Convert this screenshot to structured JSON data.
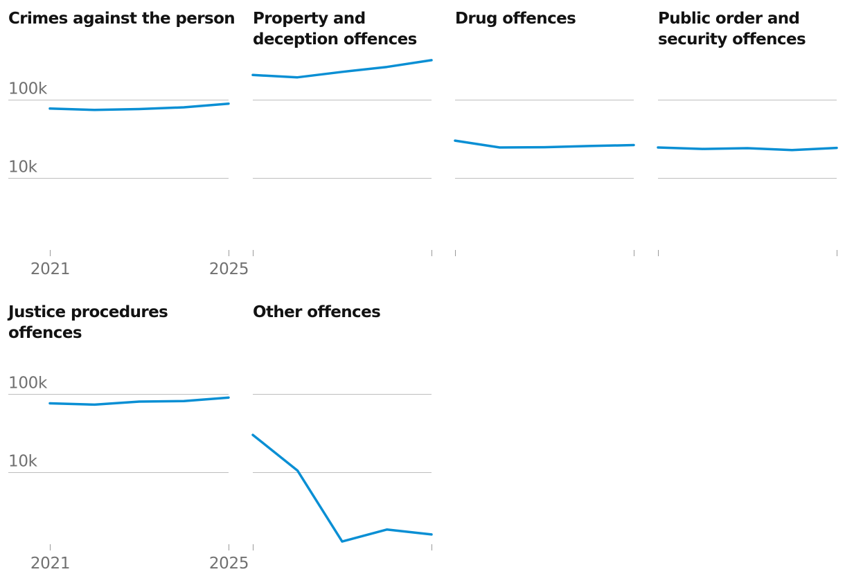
{
  "chart_data": {
    "type": "line",
    "layout": "small-multiples",
    "y_scale": "log",
    "ylim": [
      1000,
      400000
    ],
    "y_ticks": [
      {
        "value": 100000,
        "label": "100k"
      },
      {
        "value": 10000,
        "label": "10k"
      }
    ],
    "x": [
      2021,
      2022,
      2023,
      2024,
      2025
    ],
    "x_tick_labels": [
      {
        "value": 2021,
        "label": "2021"
      },
      {
        "value": 2025,
        "label": "2025"
      }
    ],
    "colors": {
      "series": "#0a8fd4"
    },
    "panels": [
      {
        "title_lines": [
          "Crimes against the person"
        ],
        "values": [
          77000,
          74000,
          76000,
          80000,
          89000
        ],
        "show_y_labels": true,
        "show_x_labels": true
      },
      {
        "title_lines": [
          "Property and",
          "deception offences"
        ],
        "values": [
          207000,
          193000,
          227000,
          262000,
          320000
        ],
        "show_y_labels": false,
        "show_x_labels": false
      },
      {
        "title_lines": [
          "Drug offences"
        ],
        "values": [
          30000,
          24500,
          24700,
          25600,
          26300
        ],
        "show_y_labels": false,
        "show_x_labels": false
      },
      {
        "title_lines": [
          "Public order and",
          "security offences"
        ],
        "values": [
          24500,
          23500,
          24000,
          22700,
          24200
        ],
        "show_y_labels": false,
        "show_x_labels": false
      },
      {
        "title_lines": [
          "Justice procedures",
          "offences"
        ],
        "values": [
          76000,
          73000,
          80000,
          81000,
          90000
        ],
        "show_y_labels": true,
        "show_x_labels": true
      },
      {
        "title_lines": [
          "Other offences"
        ],
        "values": [
          30000,
          10500,
          1300,
          1850,
          1600
        ],
        "show_y_labels": false,
        "show_x_labels": false
      }
    ]
  }
}
